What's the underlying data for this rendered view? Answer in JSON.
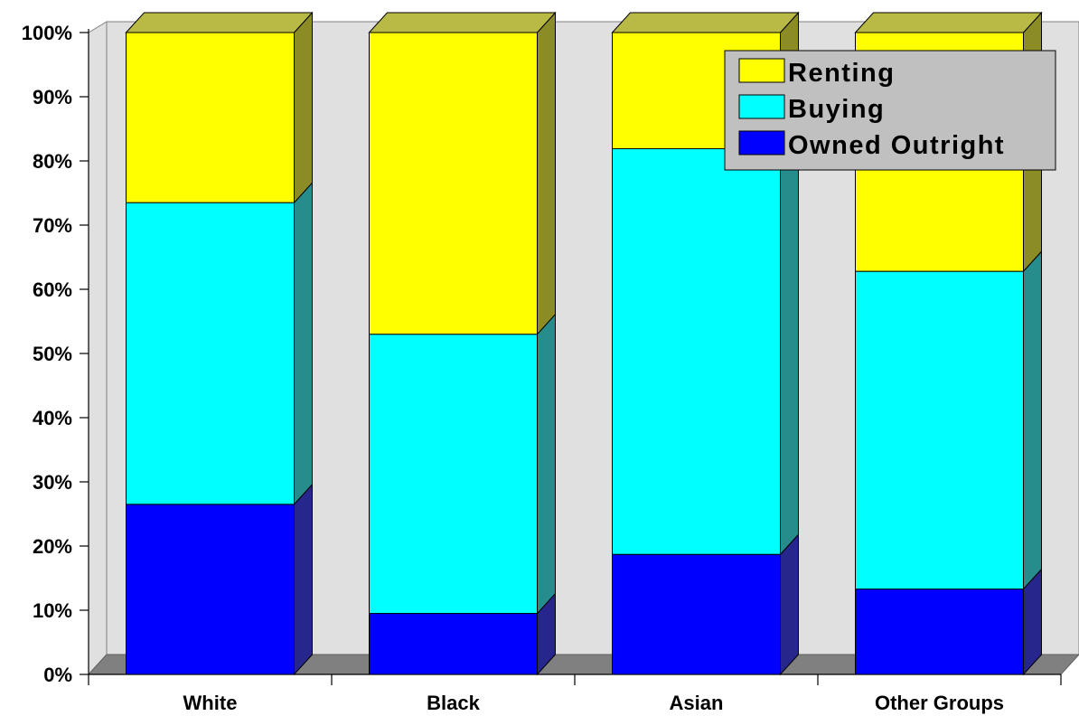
{
  "chart_data": {
    "type": "bar",
    "stacked": true,
    "three_d": true,
    "categories": [
      "White",
      "Black",
      "Asian",
      "Other Groups"
    ],
    "series": [
      {
        "name": "Owned Outright",
        "color": "#0000ff",
        "values": [
          26.5,
          9.5,
          18.7,
          13.3
        ]
      },
      {
        "name": "Buying",
        "color": "#00ffff",
        "values": [
          47.0,
          43.5,
          63.2,
          49.5
        ]
      },
      {
        "name": "Renting",
        "color": "#ffff00",
        "values": [
          26.5,
          47.0,
          18.1,
          37.2
        ]
      }
    ],
    "y_ticks": [
      "0%",
      "10%",
      "20%",
      "30%",
      "40%",
      "50%",
      "60%",
      "70%",
      "80%",
      "90%",
      "100%"
    ],
    "ylim": [
      0,
      100
    ],
    "grid": false,
    "legend_position": "top-right",
    "wall_color": "#e0e0e0",
    "floor_color": "#808080"
  }
}
